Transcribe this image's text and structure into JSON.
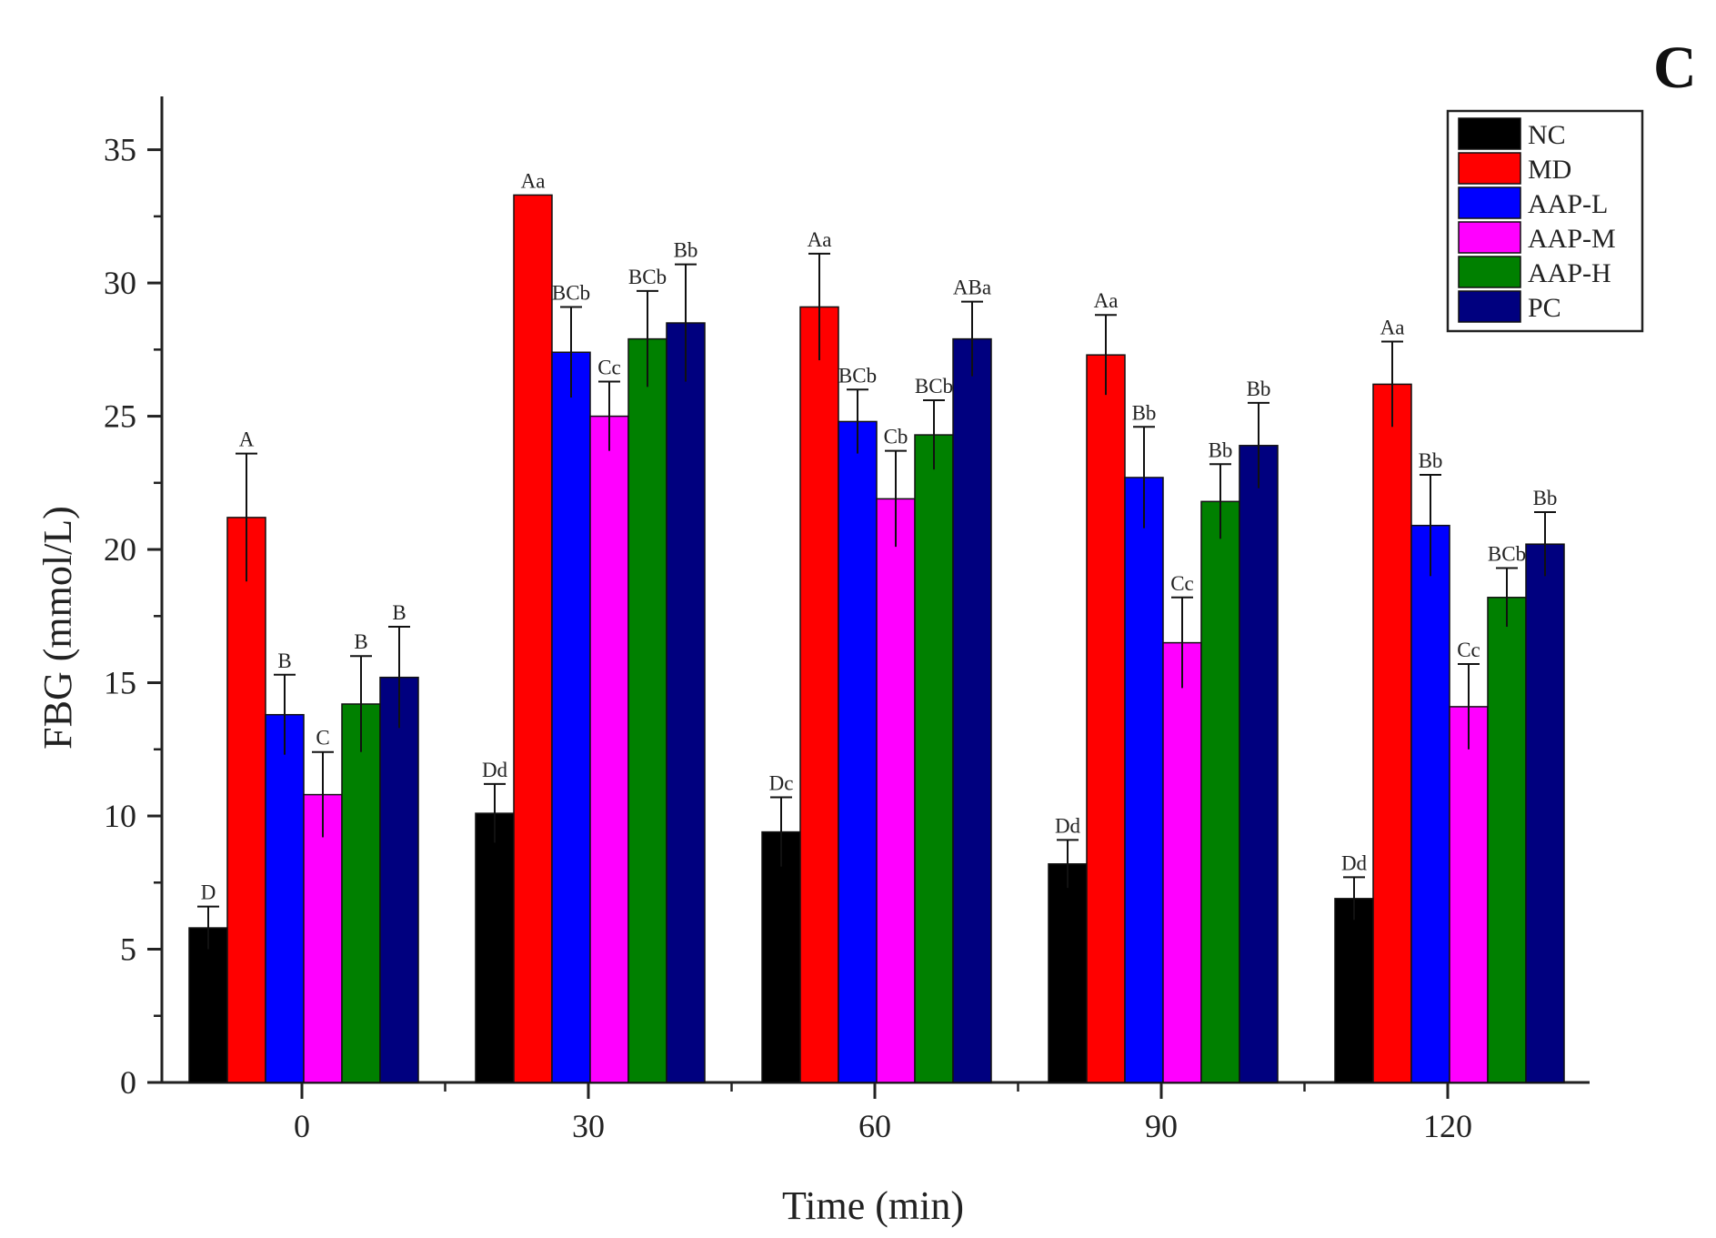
{
  "panel_label": "C",
  "chart_data": {
    "type": "bar",
    "title": "",
    "xlabel": "Time (min)",
    "ylabel": "FBG (mmol/L)",
    "ylim": [
      0,
      37
    ],
    "yticks": [
      "0",
      "5",
      "10",
      "15",
      "20",
      "25",
      "30",
      "35"
    ],
    "ytick_values": [
      0,
      5,
      10,
      15,
      20,
      25,
      30,
      35
    ],
    "categories": [
      "0",
      "30",
      "60",
      "90",
      "120"
    ],
    "legend_position": "top-right",
    "series": [
      {
        "name": "NC",
        "color": "#000000",
        "values": [
          5.8,
          10.1,
          9.4,
          8.2,
          6.9
        ],
        "errors": [
          0.8,
          1.1,
          1.3,
          0.9,
          0.8
        ],
        "labels": [
          "D",
          "Dd",
          "Dc",
          "Dd",
          "Dd"
        ]
      },
      {
        "name": "MD",
        "color": "#ff0000",
        "values": [
          21.2,
          33.3,
          29.1,
          27.3,
          26.2
        ],
        "errors": [
          2.4,
          0.0,
          2.0,
          1.5,
          1.6
        ],
        "labels": [
          "A",
          "Aa",
          "Aa",
          "Aa",
          "Aa"
        ]
      },
      {
        "name": "AAP-L",
        "color": "#0000ff",
        "values": [
          13.8,
          27.4,
          24.8,
          22.7,
          20.9
        ],
        "errors": [
          1.5,
          1.7,
          1.2,
          1.9,
          1.9
        ],
        "labels": [
          "B",
          "BCb",
          "BCb",
          "Bb",
          "Bb"
        ]
      },
      {
        "name": "AAP-M",
        "color": "#ff00ff",
        "values": [
          10.8,
          25.0,
          21.9,
          16.5,
          14.1
        ],
        "errors": [
          1.6,
          1.3,
          1.8,
          1.7,
          1.6
        ],
        "labels": [
          "C",
          "Cc",
          "Cb",
          "Cc",
          "Cc"
        ]
      },
      {
        "name": "AAP-H",
        "color": "#008000",
        "values": [
          14.2,
          27.9,
          24.3,
          21.8,
          18.2
        ],
        "errors": [
          1.8,
          1.8,
          1.3,
          1.4,
          1.1
        ],
        "labels": [
          "B",
          "BCb",
          "BCb",
          "Bb",
          "BCb"
        ]
      },
      {
        "name": "PC",
        "color": "#00007f",
        "values": [
          15.2,
          28.5,
          27.9,
          23.9,
          20.2
        ],
        "errors": [
          1.9,
          2.2,
          1.4,
          1.6,
          1.2
        ],
        "labels": [
          "B",
          "Bb",
          "ABa",
          "Bb",
          "Bb"
        ]
      }
    ]
  }
}
